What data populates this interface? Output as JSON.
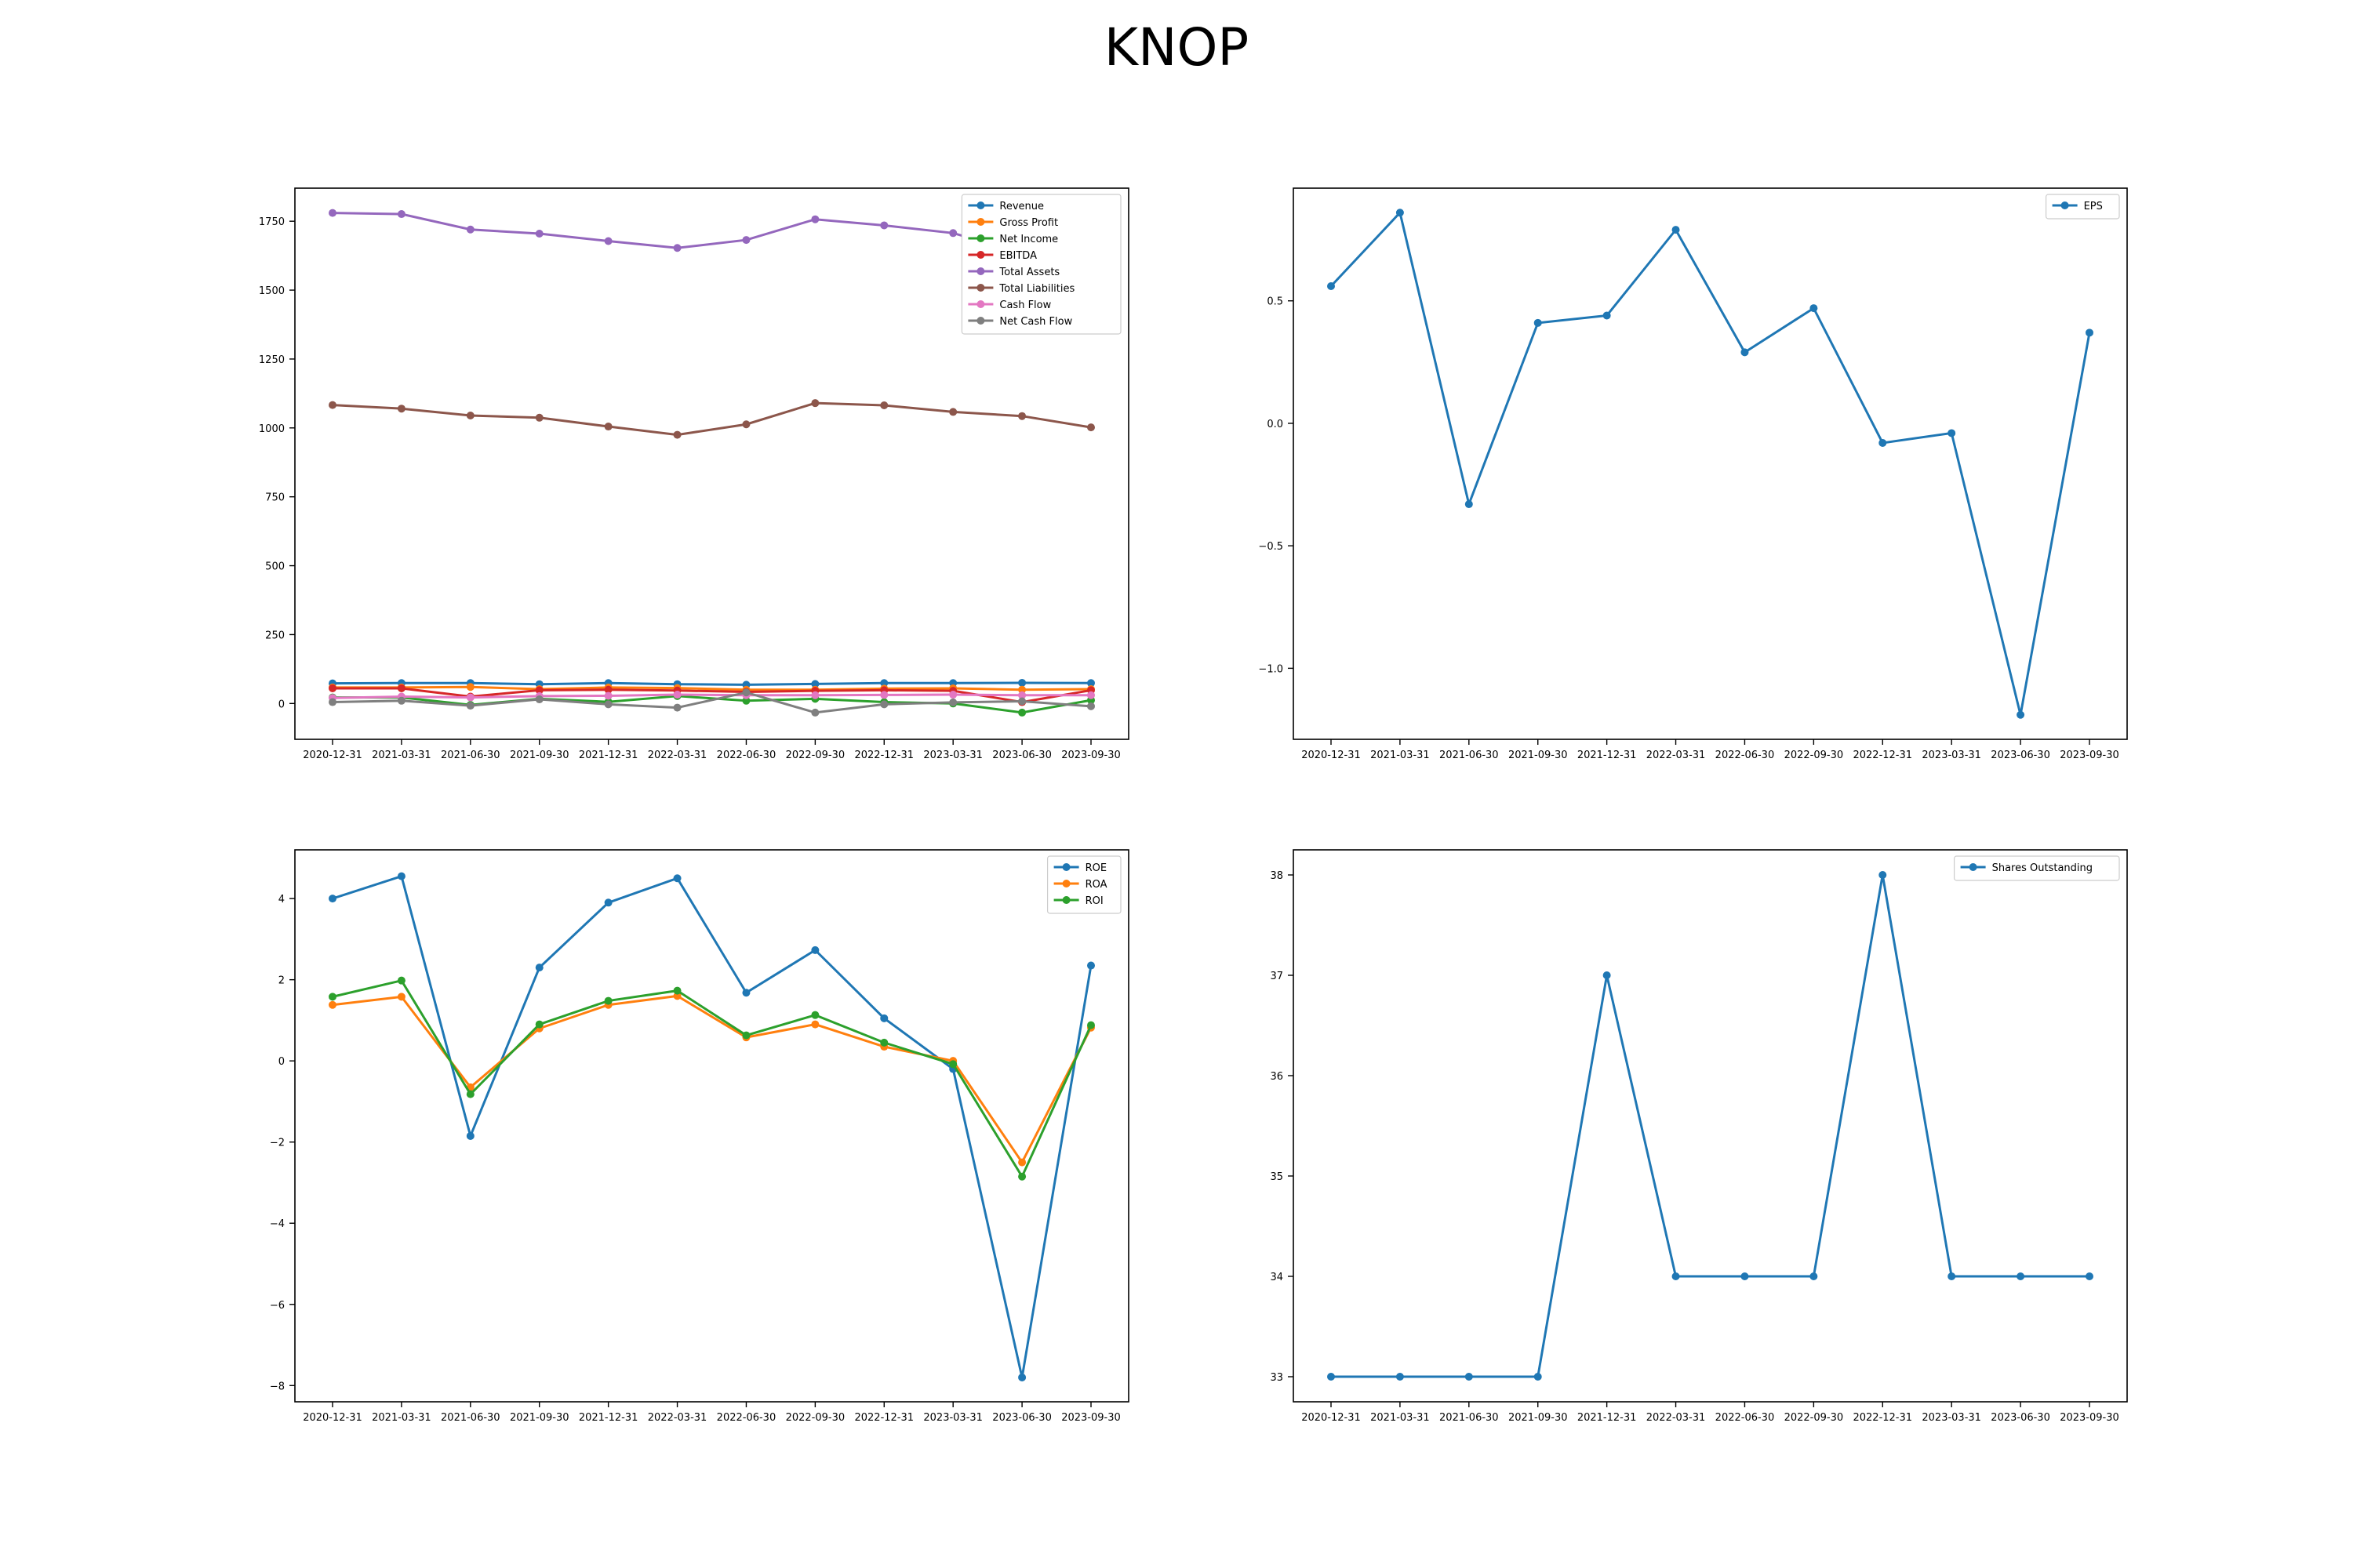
{
  "figure": {
    "title": "KNOP"
  },
  "chart_data": [
    {
      "id": "financials",
      "type": "line",
      "categories": [
        "2020-12-31",
        "2021-03-31",
        "2021-06-30",
        "2021-09-30",
        "2021-12-31",
        "2022-03-31",
        "2022-06-30",
        "2022-09-30",
        "2022-12-31",
        "2023-03-31",
        "2023-06-30",
        "2023-09-30"
      ],
      "ylim": [
        -130,
        1870
      ],
      "yticks": [
        0,
        250,
        500,
        750,
        1000,
        1250,
        1500,
        1750
      ],
      "ytick_labels": [
        "0",
        "250",
        "500",
        "750",
        "1000",
        "1250",
        "1500",
        "1750"
      ],
      "grid": false,
      "legend": "top-right",
      "series": [
        {
          "name": "Revenue",
          "color": "#1f77b4",
          "values": [
            73,
            74,
            74,
            70,
            74,
            70,
            68,
            71,
            74,
            74,
            75,
            74
          ]
        },
        {
          "name": "Gross Profit",
          "color": "#ff7f0e",
          "values": [
            58,
            58,
            60,
            52,
            58,
            56,
            50,
            50,
            54,
            55,
            50,
            52
          ]
        },
        {
          "name": "Net Income",
          "color": "#2ca02c",
          "values": [
            22,
            22,
            -5,
            17,
            6,
            27,
            10,
            17,
            5,
            0,
            -33,
            12
          ]
        },
        {
          "name": "EBITDA",
          "color": "#d62728",
          "values": [
            55,
            55,
            25,
            48,
            50,
            47,
            42,
            46,
            48,
            46,
            5,
            48
          ]
        },
        {
          "name": "Total Assets",
          "color": "#9467bd",
          "values": [
            1780,
            1776,
            1720,
            1705,
            1678,
            1653,
            1682,
            1757,
            1735,
            1707,
            1635,
            1610
          ]
        },
        {
          "name": "Total Liabilities",
          "color": "#8c564b",
          "values": [
            1083,
            1070,
            1045,
            1037,
            1005,
            975,
            1013,
            1090,
            1082,
            1058,
            1043,
            1002
          ]
        },
        {
          "name": "Cash Flow",
          "color": "#e377c2",
          "values": [
            20,
            25,
            22,
            27,
            28,
            32,
            30,
            30,
            31,
            32,
            30,
            30
          ]
        },
        {
          "name": "Net Cash Flow",
          "color": "#7f7f7f",
          "values": [
            5,
            10,
            -8,
            15,
            -3,
            -15,
            40,
            -33,
            -3,
            4,
            8,
            -10
          ]
        }
      ]
    },
    {
      "id": "eps",
      "type": "line",
      "categories": [
        "2020-12-31",
        "2021-03-31",
        "2021-06-30",
        "2021-09-30",
        "2021-12-31",
        "2022-03-31",
        "2022-06-30",
        "2022-09-30",
        "2022-12-31",
        "2023-03-31",
        "2023-06-30",
        "2023-09-30"
      ],
      "ylim": [
        -1.29,
        0.96
      ],
      "yticks": [
        -1.0,
        -0.5,
        0.0,
        0.5
      ],
      "ytick_labels": [
        "−1.0",
        "−0.5",
        "0.0",
        "0.5"
      ],
      "grid": false,
      "legend": "top-right",
      "series": [
        {
          "name": "EPS",
          "color": "#1f77b4",
          "values": [
            0.56,
            0.86,
            -0.33,
            0.41,
            0.44,
            0.79,
            0.29,
            0.47,
            -0.08,
            -0.04,
            -1.19,
            0.37
          ]
        }
      ]
    },
    {
      "id": "returns",
      "type": "line",
      "categories": [
        "2020-12-31",
        "2021-03-31",
        "2021-06-30",
        "2021-09-30",
        "2021-12-31",
        "2022-03-31",
        "2022-06-30",
        "2022-09-30",
        "2022-12-31",
        "2023-03-31",
        "2023-06-30",
        "2023-09-30"
      ],
      "ylim": [
        -8.4,
        5.2
      ],
      "yticks": [
        -8,
        -6,
        -4,
        -2,
        0,
        2,
        4
      ],
      "ytick_labels": [
        "−8",
        "−6",
        "−4",
        "−2",
        "0",
        "2",
        "4"
      ],
      "grid": false,
      "legend": "top-right",
      "series": [
        {
          "name": "ROE",
          "color": "#1f77b4",
          "values": [
            4.0,
            4.55,
            -1.85,
            2.3,
            3.9,
            4.5,
            1.68,
            2.73,
            1.05,
            -0.2,
            -7.8,
            2.35
          ]
        },
        {
          "name": "ROA",
          "color": "#ff7f0e",
          "values": [
            1.38,
            1.58,
            -0.65,
            0.8,
            1.38,
            1.6,
            0.58,
            0.9,
            0.35,
            0.0,
            -2.5,
            0.82
          ]
        },
        {
          "name": "ROI",
          "color": "#2ca02c",
          "values": [
            1.58,
            1.98,
            -0.82,
            0.9,
            1.48,
            1.73,
            0.63,
            1.13,
            0.45,
            -0.08,
            -2.85,
            0.88
          ]
        }
      ]
    },
    {
      "id": "shares",
      "type": "line",
      "categories": [
        "2020-12-31",
        "2021-03-31",
        "2021-06-30",
        "2021-09-30",
        "2021-12-31",
        "2022-03-31",
        "2022-06-30",
        "2022-09-30",
        "2022-12-31",
        "2023-03-31",
        "2023-06-30",
        "2023-09-30"
      ],
      "ylim": [
        32.75,
        38.25
      ],
      "yticks": [
        33,
        34,
        35,
        36,
        37,
        38
      ],
      "ytick_labels": [
        "33",
        "34",
        "35",
        "36",
        "37",
        "38"
      ],
      "grid": false,
      "legend": "top-right",
      "series": [
        {
          "name": "Shares Outstanding",
          "color": "#1f77b4",
          "values": [
            33,
            33,
            33,
            33,
            37,
            34,
            34,
            34,
            38,
            34,
            34,
            34
          ]
        }
      ]
    }
  ]
}
